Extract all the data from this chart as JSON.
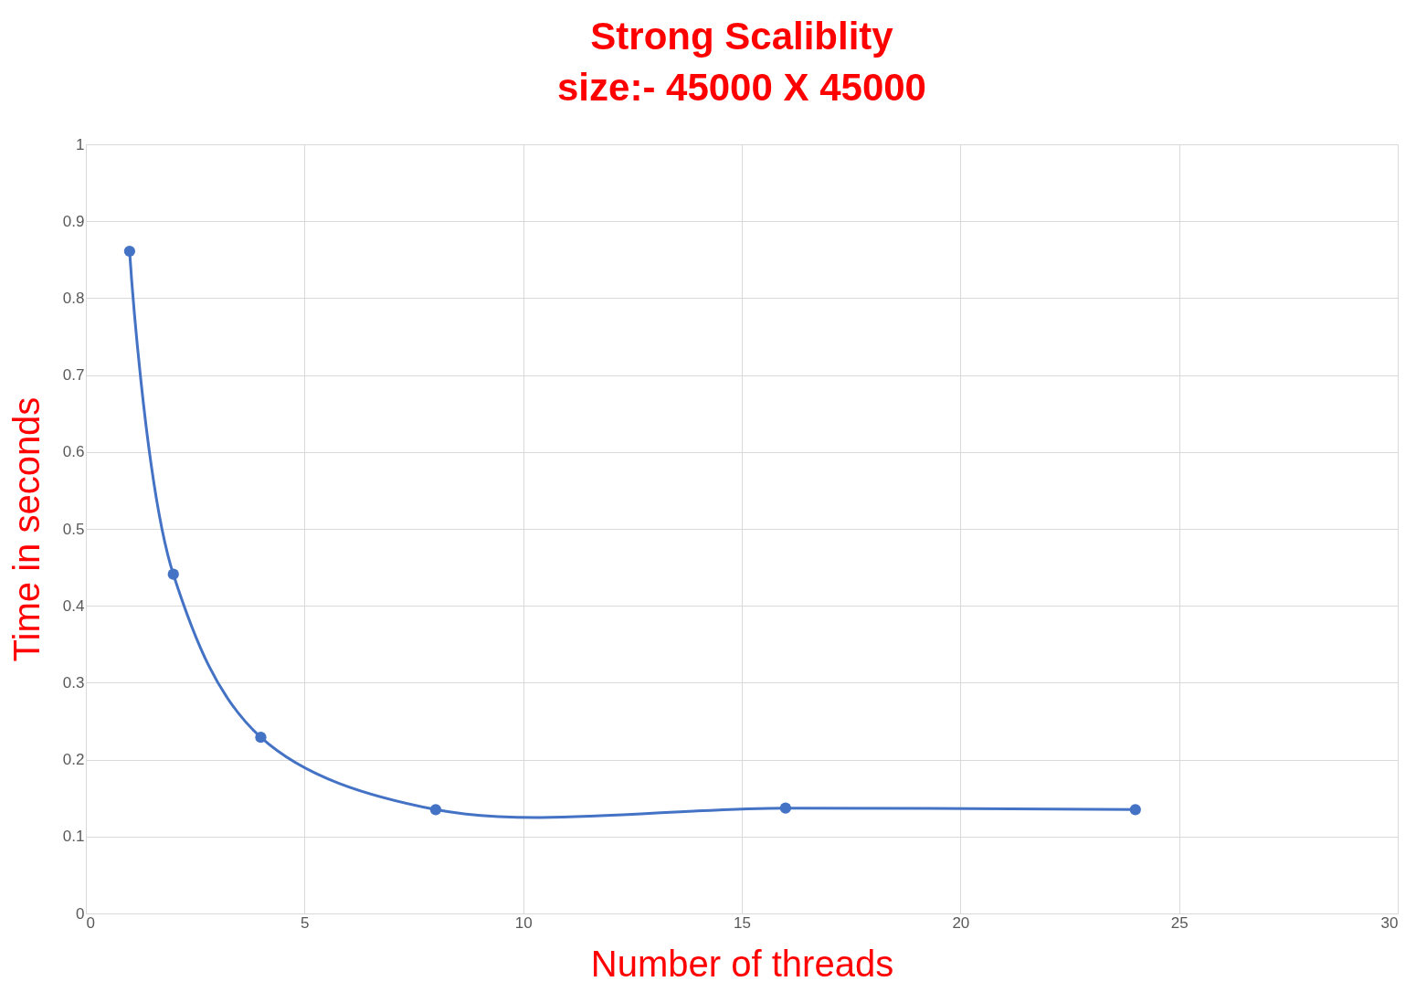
{
  "chart_data": {
    "type": "line",
    "title": "Strong Scaliblity",
    "subtitle": "size:- 45000 X 45000",
    "xlabel": "Number of threads",
    "ylabel": "Time in seconds",
    "x": [
      1,
      2,
      4,
      8,
      16,
      24
    ],
    "series": [
      {
        "color": "#4472c4",
        "values": [
          0.861,
          0.441,
          0.229,
          0.135,
          0.137,
          0.135
        ]
      }
    ],
    "xlim": [
      0,
      30
    ],
    "xticks": [
      0,
      5,
      10,
      15,
      20,
      25,
      30
    ],
    "ylim": [
      0,
      1
    ],
    "yticks": [
      0,
      0.1,
      0.2,
      0.3,
      0.4,
      0.5,
      0.6,
      0.7,
      0.8,
      0.9,
      1
    ],
    "grid": true,
    "marker": "circle",
    "line_style": "solid"
  }
}
